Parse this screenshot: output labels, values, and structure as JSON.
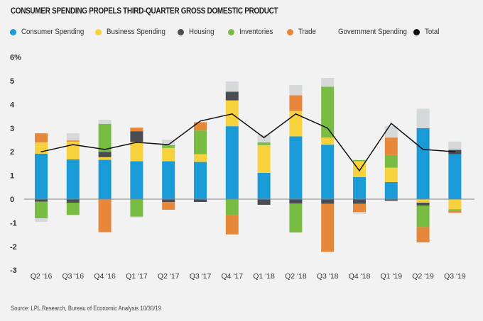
{
  "title": "CONSUMER SPENDING PROPELS THIRD-QUARTER GROSS DOMESTIC PRODUCT",
  "source": "Source: LPL Research, Bureau of Economic Analysis  10/30/19",
  "colors": {
    "consumer": "#1a9ad6",
    "business": "#f8d23c",
    "housing": "#4a4d54",
    "inventories": "#79bc42",
    "trade": "#e6873a",
    "government": "#d6d9d9",
    "total": "#111111",
    "axis": "#888888",
    "text": "#333333"
  },
  "legend": [
    {
      "key": "consumer",
      "label": "Consumer Spending"
    },
    {
      "key": "business",
      "label": "Business Spending"
    },
    {
      "key": "housing",
      "label": "Housing"
    },
    {
      "key": "inventories",
      "label": "Inventories"
    },
    {
      "key": "trade",
      "label": "Trade"
    },
    {
      "key": "government",
      "label": "Government Spending"
    },
    {
      "key": "total",
      "label": "Total"
    }
  ],
  "chart_data": {
    "type": "bar",
    "stacked": true,
    "title": "CONSUMER SPENDING PROPELS THIRD-QUARTER GROSS DOMESTIC PRODUCT",
    "xlabel": "",
    "ylabel": "",
    "ylim": [
      -3,
      6
    ],
    "yticks": [
      -3,
      -2,
      -1,
      0,
      1,
      2,
      3,
      4,
      5,
      6
    ],
    "ytick_labels": [
      "-3",
      "-2",
      "-1",
      "0",
      "1",
      "2",
      "3",
      "4",
      "5",
      "6%"
    ],
    "grid": false,
    "legend_position": "top-left",
    "categories": [
      "Q2 '16",
      "Q3 '16",
      "Q4 '16",
      "Q1 '17",
      "Q2 '17",
      "Q3 '17",
      "Q4 '17",
      "Q1 '18",
      "Q2 '18",
      "Q3 '18",
      "Q4 '18",
      "Q1 '19",
      "Q2 '19",
      "Q3 '19"
    ],
    "series": [
      {
        "key": "consumer",
        "name": "Consumer Spending",
        "values": [
          1.92,
          1.68,
          1.66,
          1.6,
          1.6,
          1.57,
          3.08,
          1.11,
          2.65,
          2.3,
          0.93,
          0.72,
          3.0,
          1.9
        ]
      },
      {
        "key": "business",
        "name": "Business Spending",
        "values": [
          0.48,
          0.75,
          0.11,
          0.82,
          0.56,
          0.33,
          1.09,
          1.17,
          1.07,
          0.3,
          0.67,
          0.61,
          -0.15,
          -0.43
        ]
      },
      {
        "key": "housing",
        "name": "Housing",
        "values": [
          -0.11,
          -0.15,
          0.23,
          0.45,
          -0.12,
          -0.12,
          0.37,
          -0.24,
          -0.19,
          -0.2,
          -0.2,
          -0.07,
          -0.12,
          0.18
        ]
      },
      {
        "key": "inventories",
        "name": "Inventories",
        "values": [
          -0.7,
          -0.52,
          1.18,
          -0.74,
          0.12,
          1.0,
          -0.67,
          0.12,
          -1.22,
          2.15,
          0.05,
          0.53,
          -0.91,
          -0.07
        ]
      },
      {
        "key": "trade",
        "name": "Trade",
        "values": [
          0.38,
          0.05,
          -1.4,
          0.15,
          -0.33,
          0.35,
          -0.82,
          0.0,
          0.67,
          -2.03,
          -0.34,
          0.74,
          -0.65,
          -0.08
        ]
      },
      {
        "key": "government",
        "name": "Government Spending",
        "values": [
          -0.15,
          0.3,
          0.17,
          -0.04,
          0.23,
          0.0,
          0.43,
          0.32,
          0.43,
          0.37,
          -0.09,
          0.49,
          0.82,
          0.35
        ]
      }
    ],
    "line_series": {
      "key": "total",
      "name": "Total",
      "values": [
        2.0,
        2.3,
        2.1,
        2.4,
        2.3,
        3.3,
        3.6,
        2.6,
        3.6,
        3.0,
        1.2,
        3.2,
        2.1,
        2.0
      ]
    }
  }
}
